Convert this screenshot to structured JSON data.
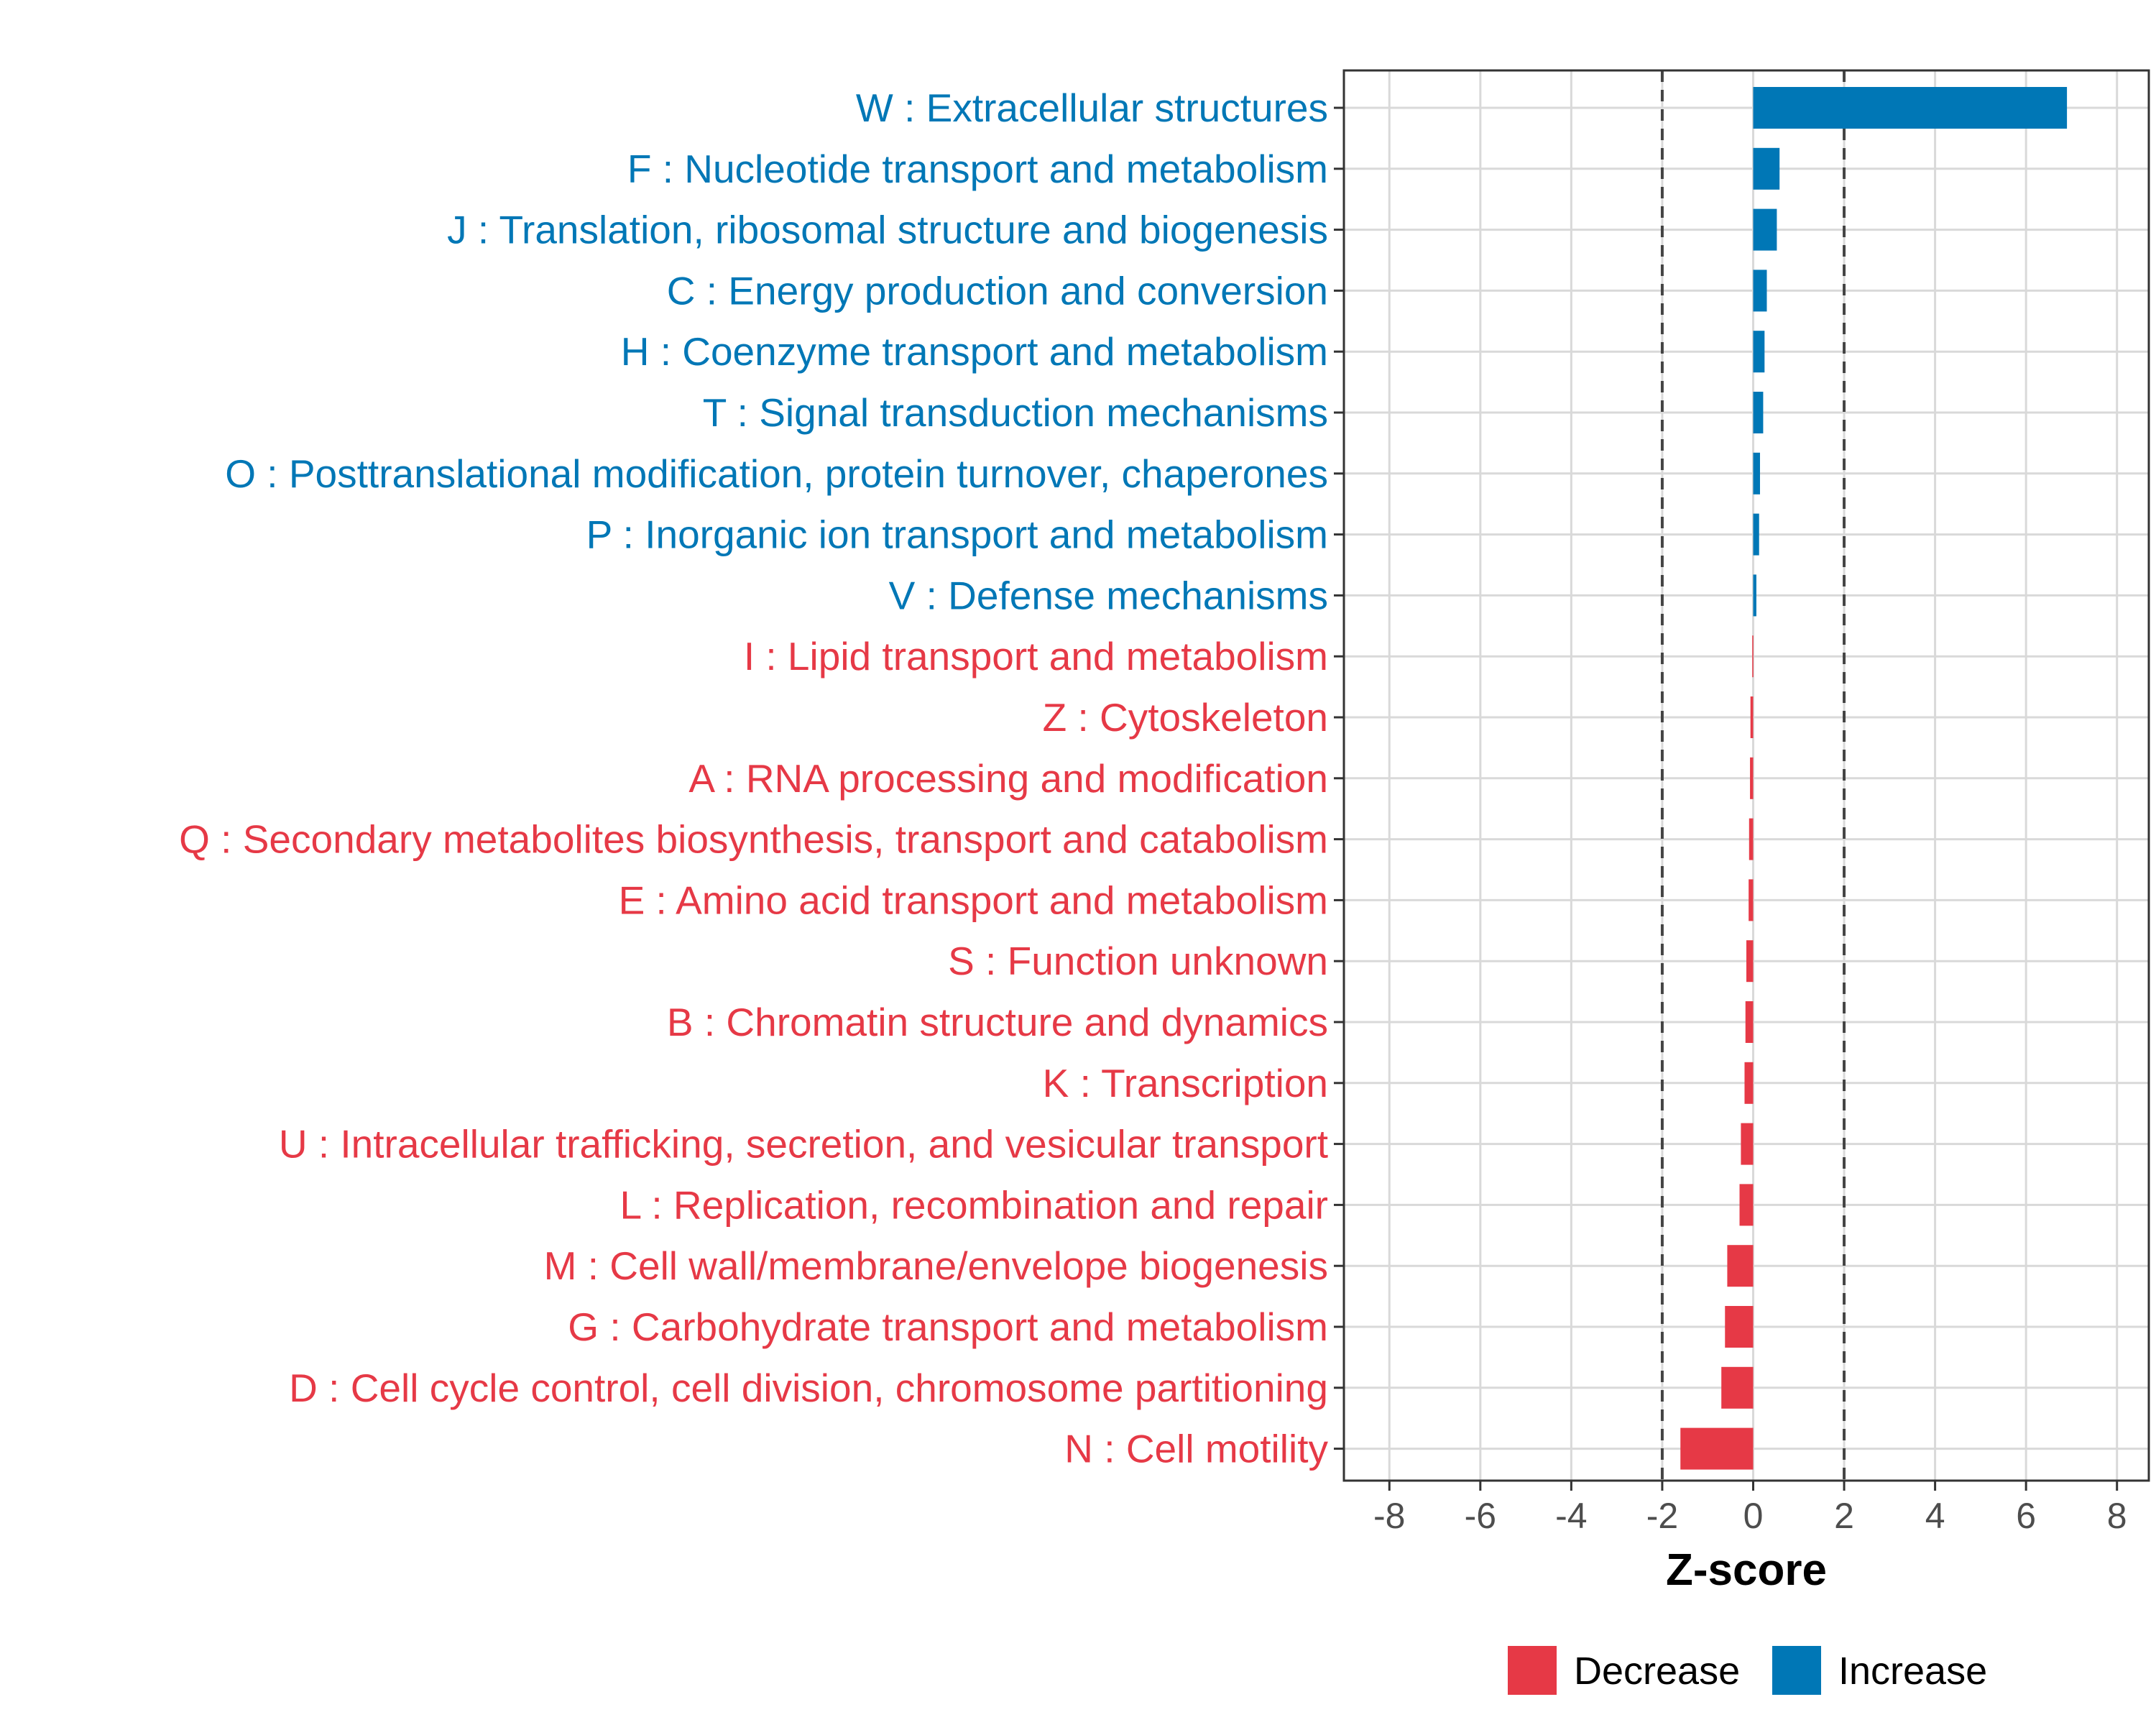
{
  "chart_data": {
    "type": "bar",
    "orientation": "horizontal",
    "xlabel": "Z-score",
    "xlim": [
      -9,
      8.7
    ],
    "xticks": [
      -8,
      -6,
      -4,
      -2,
      0,
      2,
      4,
      6,
      8
    ],
    "xtick_labels": [
      "-8",
      "-6",
      "-4",
      "-2",
      "0",
      "2",
      "4",
      "6",
      "8"
    ],
    "reference_lines": [
      -2,
      2
    ],
    "grid": true,
    "legend_position": "bottom",
    "colors": {
      "Decrease": "#E63946",
      "Increase": "#0077B6"
    },
    "legend": [
      {
        "name": "Decrease",
        "color": "#E63946"
      },
      {
        "name": "Increase",
        "color": "#0077B6"
      }
    ],
    "categories": [
      "W : Extracellular structures",
      "F : Nucleotide transport and metabolism",
      "J : Translation, ribosomal structure and biogenesis",
      "C : Energy production and conversion",
      "H : Coenzyme transport and metabolism",
      "T : Signal transduction mechanisms",
      "O : Posttranslational modification, protein turnover, chaperones",
      "P : Inorganic ion transport and metabolism",
      "V : Defense mechanisms",
      "I : Lipid transport and metabolism",
      "Z : Cytoskeleton",
      "A : RNA processing and modification",
      "Q : Secondary metabolites biosynthesis, transport and catabolism",
      "E : Amino acid transport and metabolism",
      "S : Function unknown",
      "B : Chromatin structure and dynamics",
      "K : Transcription",
      "U : Intracellular trafficking, secretion, and vesicular transport",
      "L : Replication, recombination and repair",
      "M : Cell wall/membrane/envelope biogenesis",
      "G : Carbohydrate transport and metabolism",
      "D : Cell cycle control, cell division, chromosome partitioning",
      "N : Cell motility"
    ],
    "values": [
      6.9,
      0.58,
      0.52,
      0.3,
      0.25,
      0.22,
      0.15,
      0.13,
      0.07,
      -0.02,
      -0.06,
      -0.07,
      -0.09,
      -0.1,
      -0.15,
      -0.17,
      -0.19,
      -0.27,
      -0.3,
      -0.57,
      -0.62,
      -0.7,
      -1.6
    ],
    "groups": [
      "Increase",
      "Increase",
      "Increase",
      "Increase",
      "Increase",
      "Increase",
      "Increase",
      "Increase",
      "Increase",
      "Decrease",
      "Decrease",
      "Decrease",
      "Decrease",
      "Decrease",
      "Decrease",
      "Decrease",
      "Decrease",
      "Decrease",
      "Decrease",
      "Decrease",
      "Decrease",
      "Decrease",
      "Decrease"
    ]
  }
}
